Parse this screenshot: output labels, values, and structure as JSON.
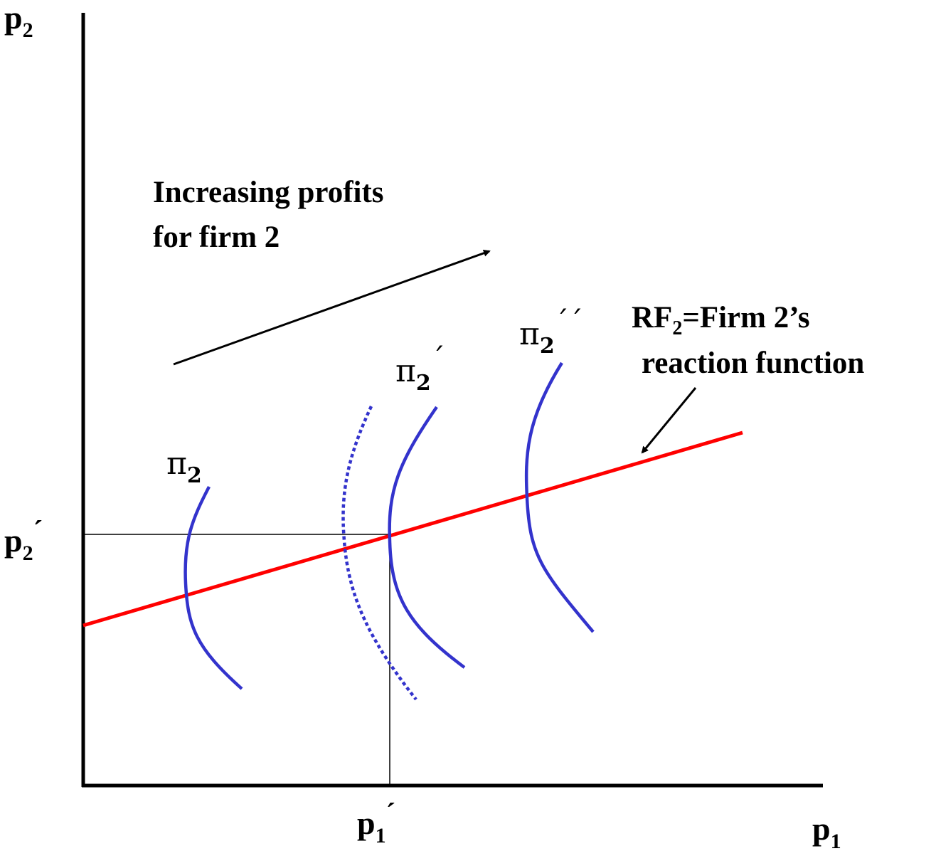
{
  "diagram": {
    "axes": {
      "y_label": {
        "main": "p",
        "sub": "2"
      },
      "x_label": {
        "main": "p",
        "sub": "1"
      }
    },
    "ticks": {
      "p2_prime": {
        "main": "p",
        "sub": "2",
        "prime": "´"
      },
      "p1_prime": {
        "main": "p",
        "sub": "1",
        "prime": "´"
      }
    },
    "annotation": {
      "line1": "Increasing profits",
      "line2": "for firm 2"
    },
    "reaction_function": {
      "label_line1_a": "RF",
      "label_line1_sub": "2",
      "label_line1_b": "=Firm 2’s",
      "label_line2": "reaction function"
    },
    "isoprofit_labels": [
      {
        "main": "π",
        "sub": "2",
        "primes": ""
      },
      {
        "main": "π",
        "sub": "2",
        "primes": "´"
      },
      {
        "main": "π",
        "sub": "2",
        "primes": "´´"
      }
    ],
    "colors": {
      "axis": "#000000",
      "reaction_line": "#ff0000",
      "isoprofit": "#3333cc"
    }
  }
}
